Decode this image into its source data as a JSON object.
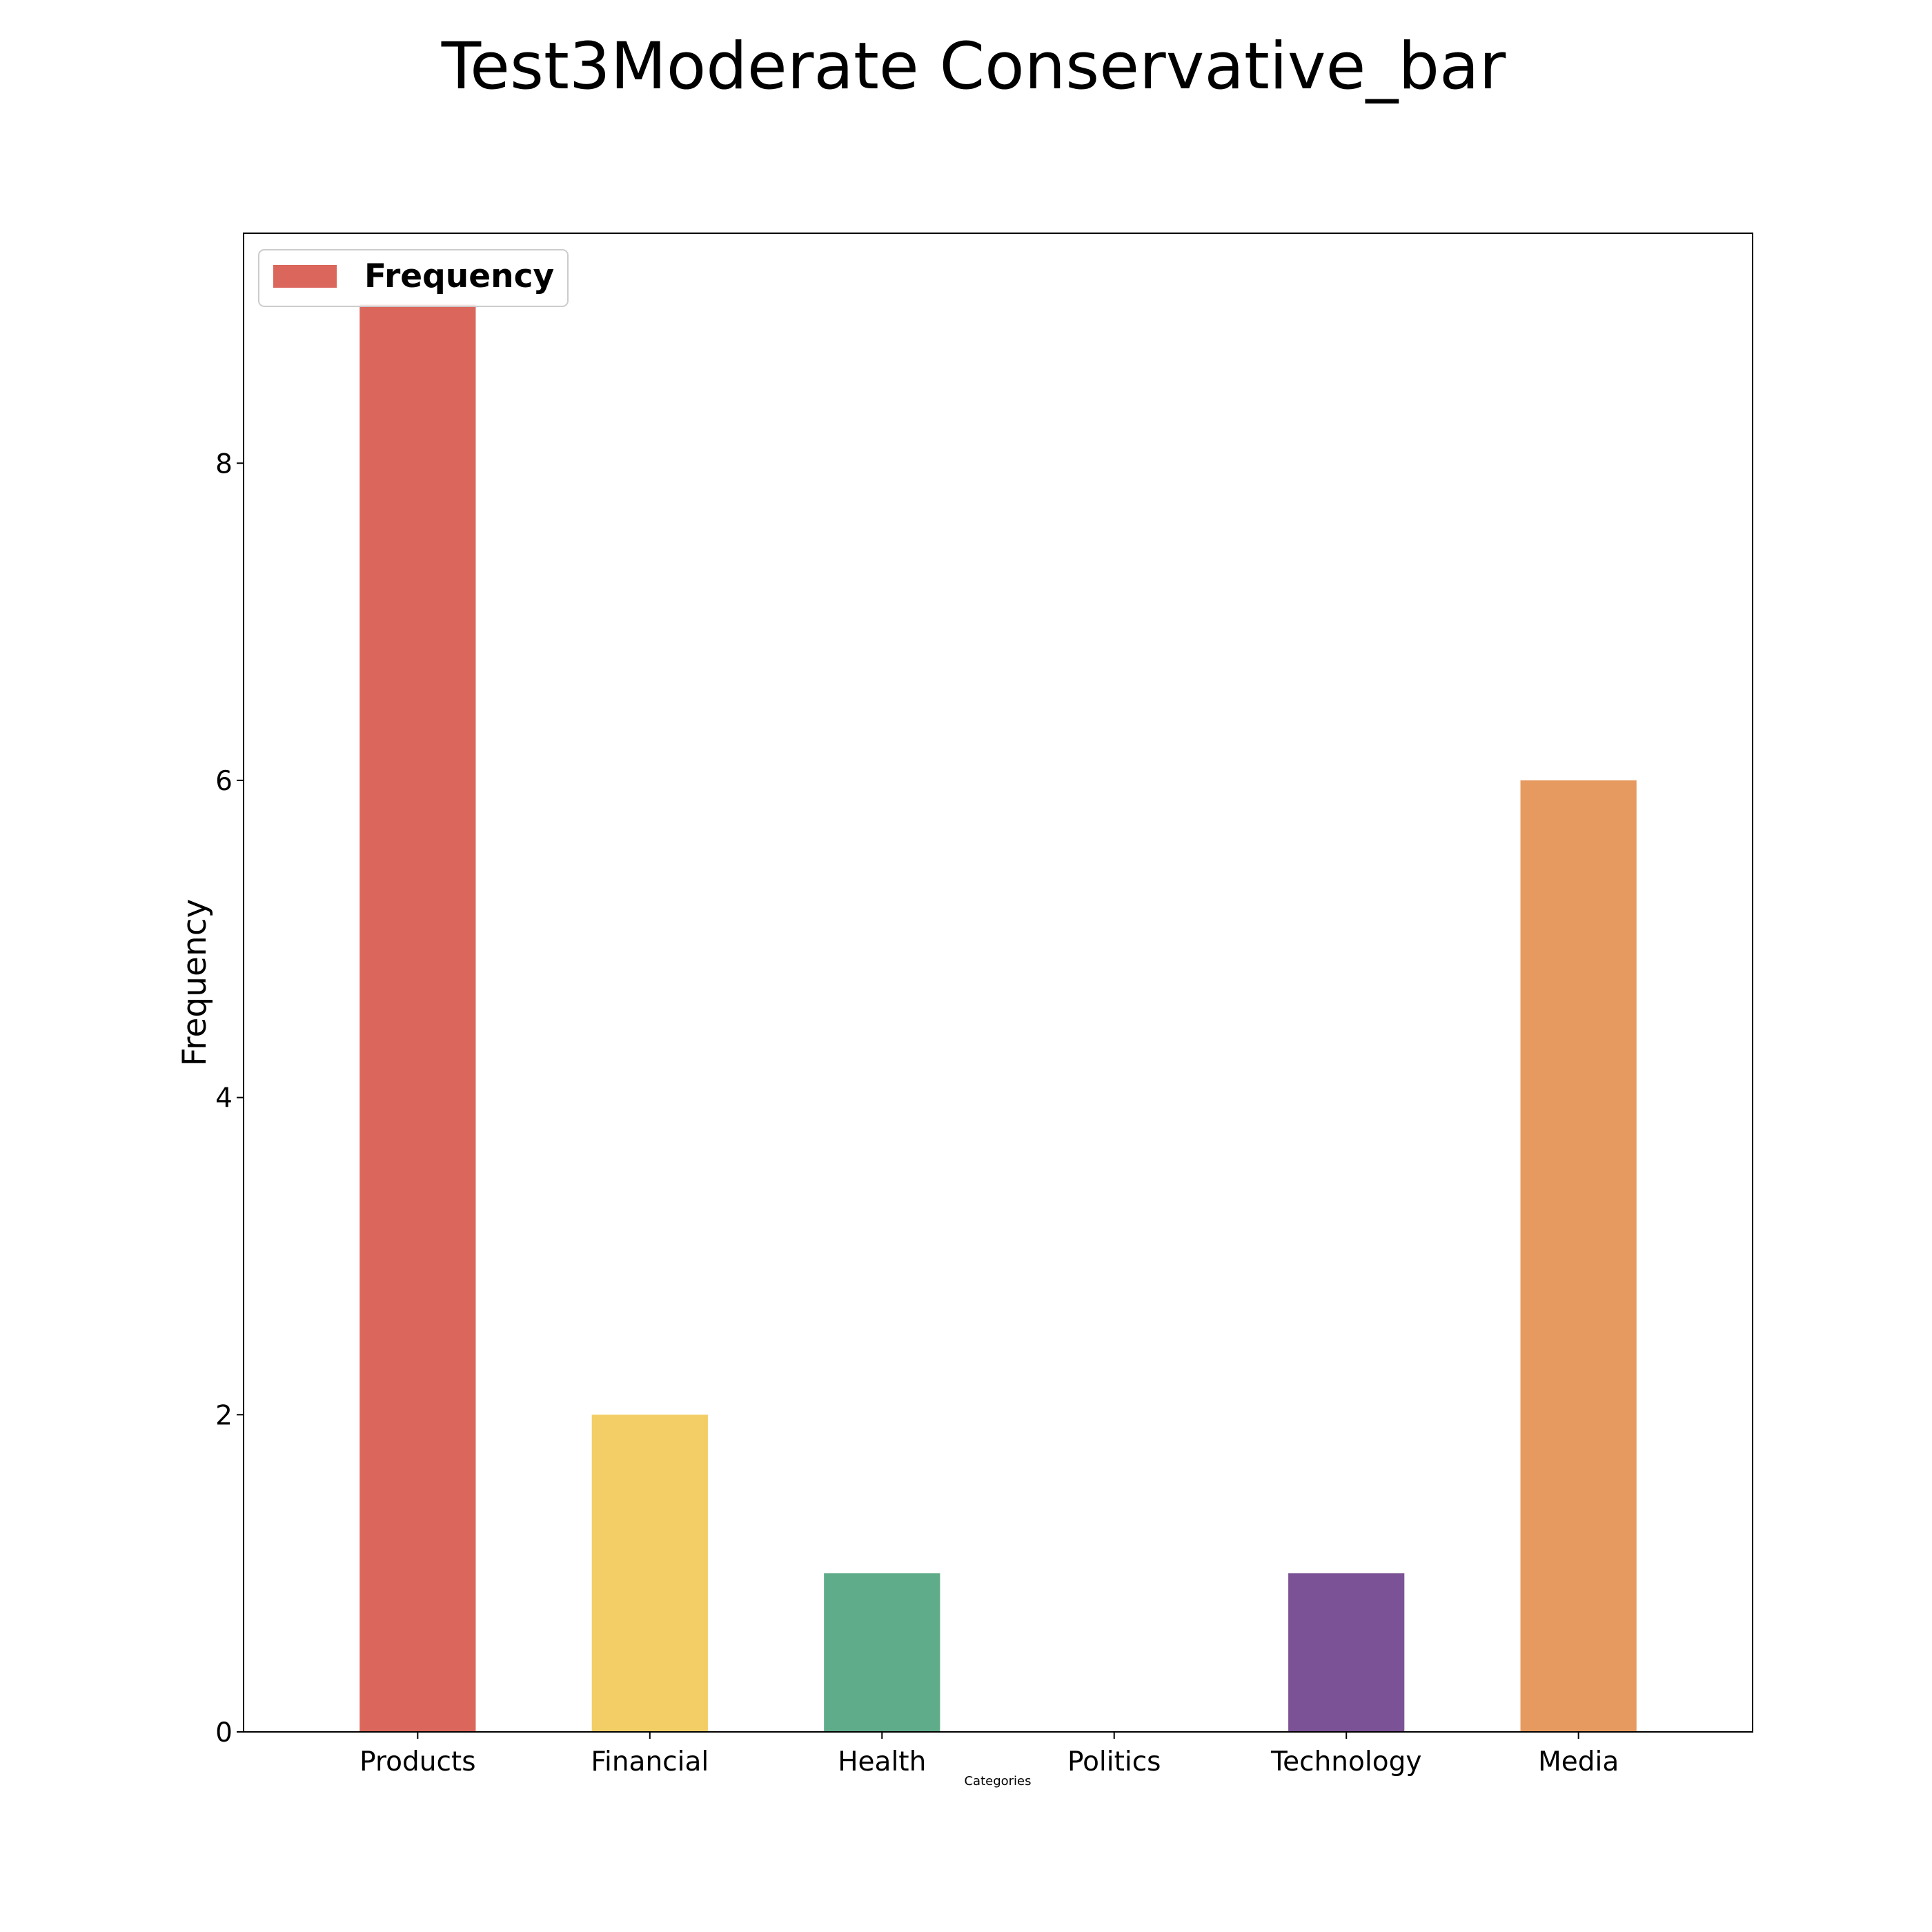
{
  "chart_data": {
    "type": "bar",
    "title": "Test3Moderate Conservative_bar",
    "xlabel": "Categories",
    "ylabel": "Frequency",
    "categories": [
      "Products",
      "Financial",
      "Health",
      "Politics",
      "Technology",
      "Media"
    ],
    "series": [
      {
        "name": "Frequency",
        "values": [
          9,
          2,
          1,
          0,
          1,
          6
        ]
      }
    ],
    "bar_colors": [
      "#db665c",
      "#f3ce66",
      "#5fac8a",
      "#3e84c4",
      "#7c5296",
      "#e79a5f"
    ],
    "yticks": [
      0,
      2,
      4,
      6,
      8
    ],
    "ylim": [
      0,
      9.45
    ],
    "grid": false,
    "legend": {
      "position": "upper-left",
      "label": "Frequency",
      "color": "#db665c"
    }
  }
}
